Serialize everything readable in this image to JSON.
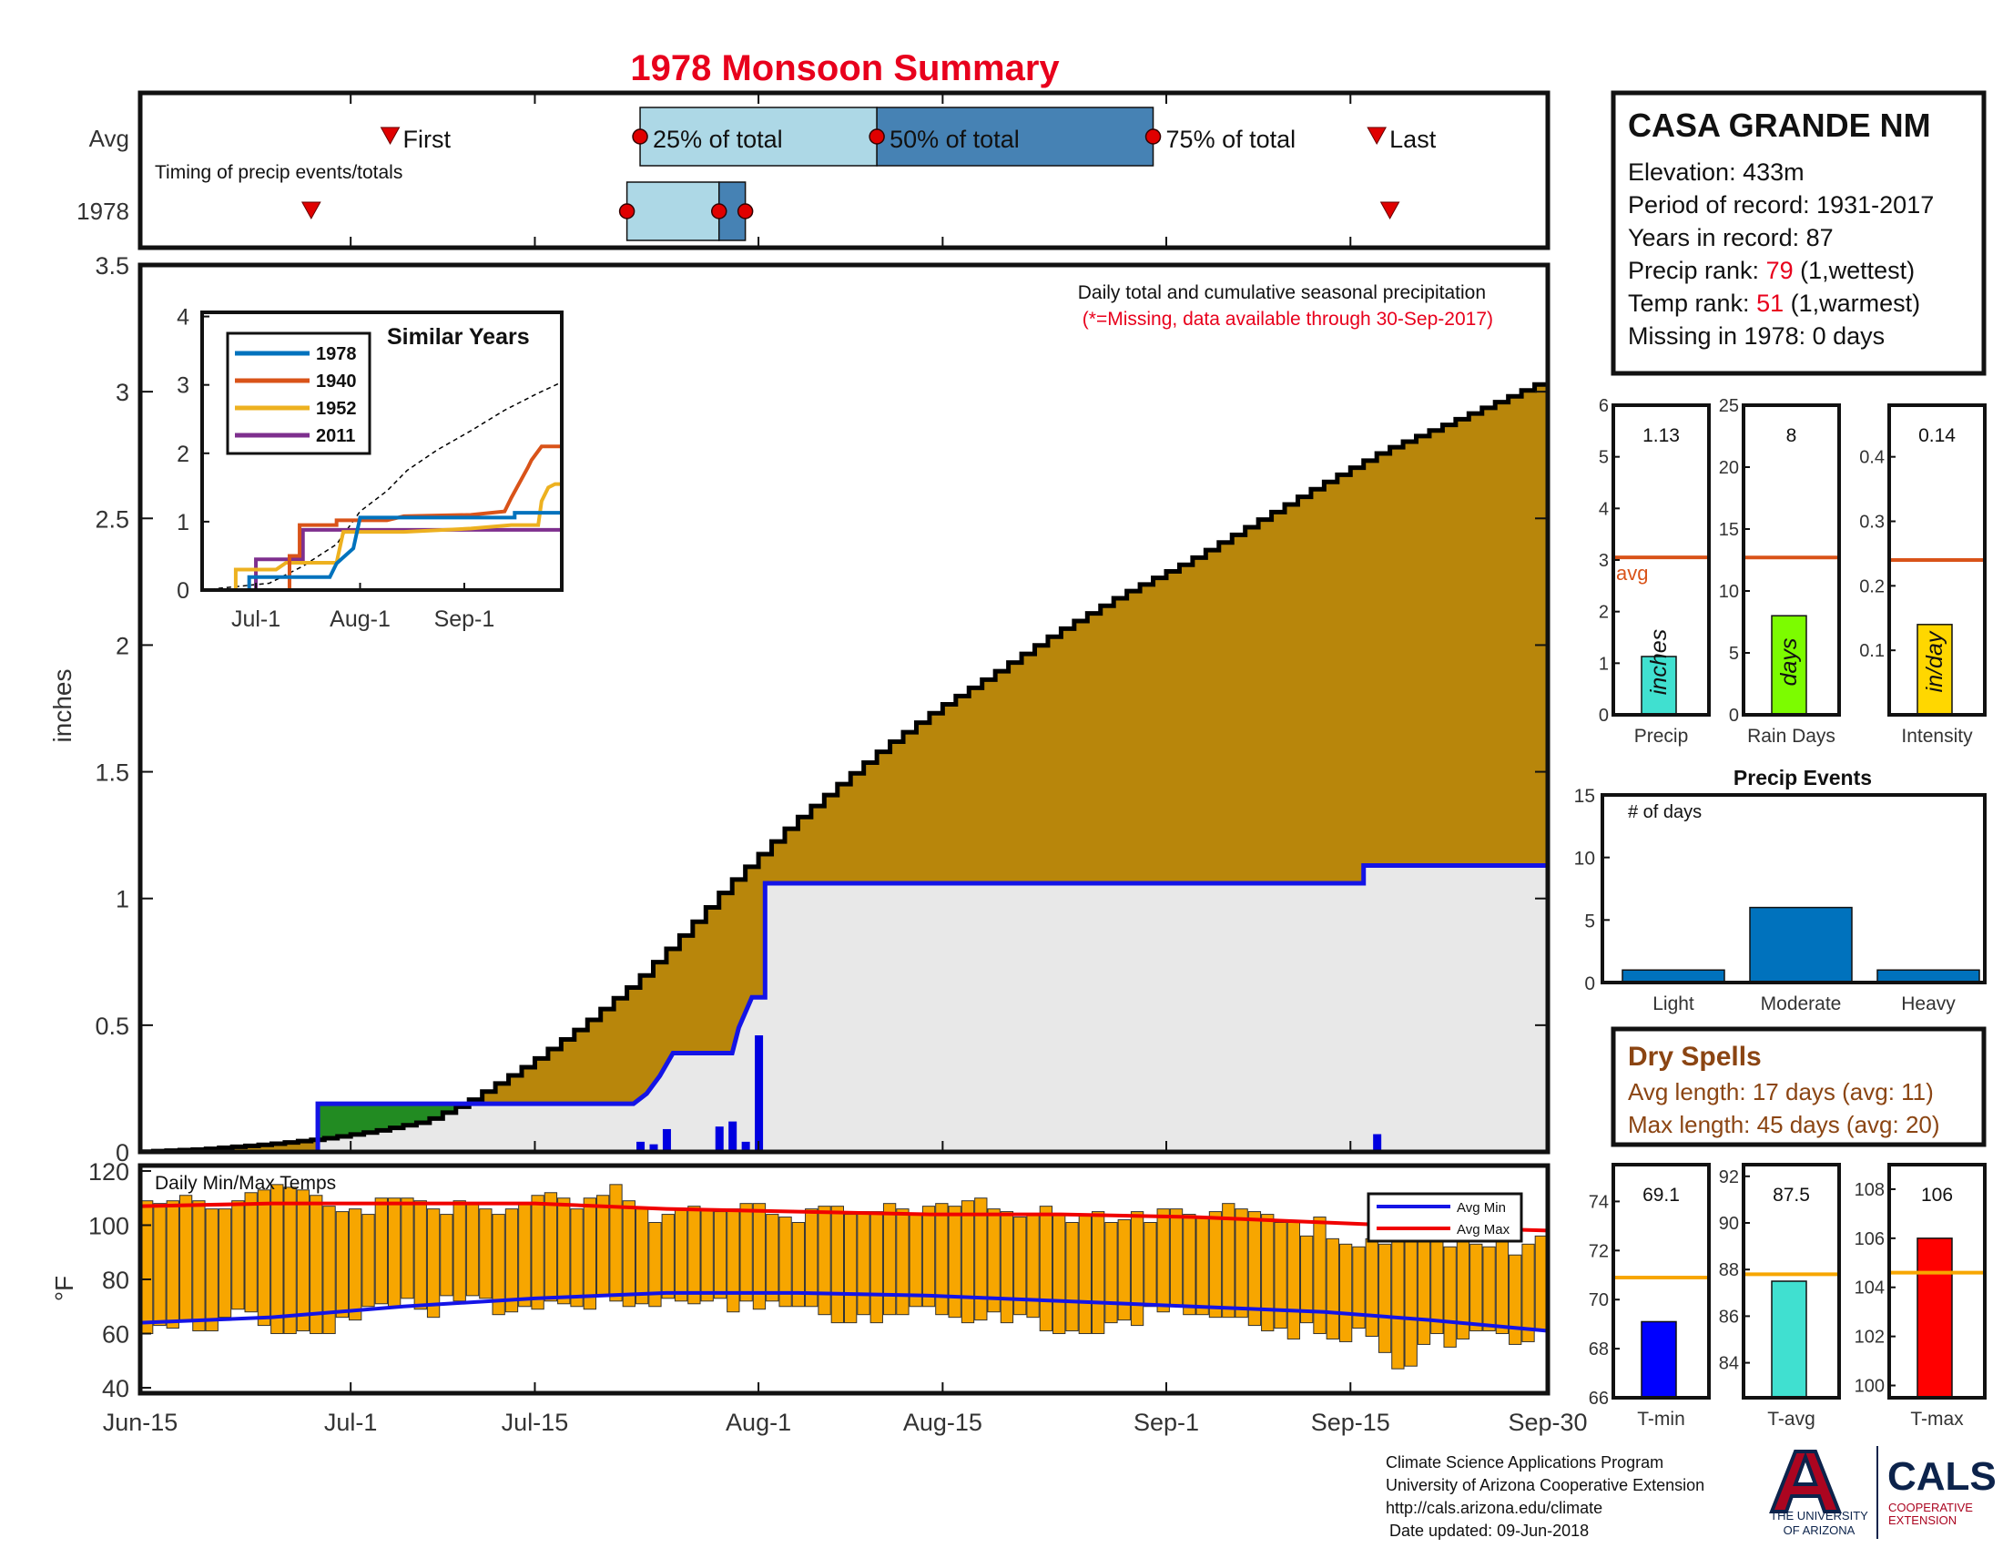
{
  "title": "1978 Monsoon Summary",
  "timing": {
    "row_avg": "Avg",
    "row_year": "1978",
    "caption": "Timing of precip events/totals",
    "first": "First",
    "p25": "25% of total",
    "p50": "50% of total",
    "p75": "75% of total",
    "last": "Last"
  },
  "station": {
    "name": "CASA GRANDE NM",
    "elevation": "Elevation: 433m",
    "period": "Period of record: 1931-2017",
    "years": "Years in record: 87",
    "precip_rank_label": "Precip rank: ",
    "precip_rank": "79",
    "precip_rank_note": " (1,wettest)",
    "temp_rank_label": "Temp rank: ",
    "temp_rank": "51",
    "temp_rank_note": " (1,warmest)",
    "missing": "Missing in 1978: 0 days"
  },
  "main_notes": {
    "line1": "Daily total and cumulative seasonal precipitation",
    "line2": "(*=Missing, data available through 30-Sep-2017)"
  },
  "dry_spells": {
    "title": "Dry Spells",
    "avg": "Avg length: 17 days (avg: 11)",
    "max": "Max length: 45 days (avg: 20)"
  },
  "footer": {
    "line1": "Climate Science Applications Program",
    "line2": "University of Arizona Cooperative Extension",
    "line3": "http://cals.arizona.edu/climate",
    "line4": "Date updated: 09-Jun-2018",
    "ua_line1": "THE UNIVERSITY",
    "ua_line2": "OF ARIZONA",
    "cals": "CALS",
    "cals_line1": "COOPERATIVE",
    "cals_line2": "EXTENSION"
  },
  "colors": {
    "title": "#e8001c",
    "avg_fill": "#b8860b",
    "obs_fill": "#e8e8e8",
    "obs_line": "#1414e6",
    "temp_bar": "#f7a600",
    "avg_line_mini": "#d95319",
    "dry_text": "#8b4513"
  },
  "chart_data": [
    {
      "type": "line",
      "title": "",
      "ylabel": "inches",
      "notes": [
        "Daily total and cumulative seasonal precipitation",
        "(*=Missing, data available through 30-Sep-2017)"
      ],
      "x_ticks": [
        "Jun-15",
        "Jul-1",
        "Jul-15",
        "Aug-1",
        "Aug-15",
        "Sep-1",
        "Sep-15",
        "Sep-30"
      ],
      "x_tick_days": [
        0,
        16,
        30,
        47,
        61,
        78,
        92,
        107
      ],
      "y_ticks": [
        "0",
        "0.5",
        "1",
        "1.5",
        "2",
        "2.5",
        "3",
        "3.5"
      ],
      "ylim": [
        0,
        3.5
      ],
      "xlim_days": [
        0,
        107
      ],
      "avg_cumulative": [
        [
          0,
          0
        ],
        [
          5,
          0.01
        ],
        [
          10,
          0.03
        ],
        [
          14,
          0.05
        ],
        [
          18,
          0.08
        ],
        [
          22,
          0.12
        ],
        [
          25,
          0.19
        ],
        [
          30,
          0.35
        ],
        [
          34,
          0.5
        ],
        [
          38,
          0.67
        ],
        [
          42,
          0.88
        ],
        [
          45,
          1.05
        ],
        [
          47,
          1.15
        ],
        [
          50,
          1.3
        ],
        [
          53,
          1.43
        ],
        [
          57,
          1.6
        ],
        [
          61,
          1.75
        ],
        [
          65,
          1.88
        ],
        [
          70,
          2.05
        ],
        [
          75,
          2.2
        ],
        [
          80,
          2.33
        ],
        [
          85,
          2.48
        ],
        [
          90,
          2.63
        ],
        [
          95,
          2.77
        ],
        [
          100,
          2.88
        ],
        [
          104,
          2.97
        ],
        [
          107,
          3.04
        ]
      ],
      "obs_cumulative_steps": [
        [
          0,
          0
        ],
        [
          13.5,
          0
        ],
        [
          13.5,
          0.19
        ],
        [
          24,
          0.19
        ],
        [
          37.5,
          0.19
        ],
        [
          38.5,
          0.23
        ],
        [
          39.5,
          0.3
        ],
        [
          40.5,
          0.39
        ],
        [
          45,
          0.39
        ],
        [
          45.5,
          0.49
        ],
        [
          46.5,
          0.61
        ],
        [
          47.5,
          0.61
        ],
        [
          47.5,
          1.06
        ],
        [
          93,
          1.06
        ],
        [
          93,
          1.13
        ],
        [
          107,
          1.13
        ]
      ],
      "daily_precip": [
        [
          38,
          0.04
        ],
        [
          39,
          0.03
        ],
        [
          40,
          0.09
        ],
        [
          44,
          0.1
        ],
        [
          45,
          0.12
        ],
        [
          46,
          0.04
        ],
        [
          47,
          0.46
        ],
        [
          94,
          0.07
        ]
      ]
    },
    {
      "type": "line",
      "title": "Similar Years",
      "x_ticks": [
        "Jul-1",
        "Aug-1",
        "Sep-1"
      ],
      "x_tick_days": [
        16,
        47,
        78
      ],
      "y_ticks": [
        "0",
        "1",
        "2",
        "3",
        "4"
      ],
      "ylim": [
        0,
        4
      ],
      "xlim_days": [
        0,
        107
      ],
      "series": [
        {
          "name": "1978",
          "color": "#0072bd",
          "points": [
            [
              0,
              0
            ],
            [
              14,
              0
            ],
            [
              14,
              0.19
            ],
            [
              38,
              0.19
            ],
            [
              40,
              0.39
            ],
            [
              45,
              0.61
            ],
            [
              47,
              1.06
            ],
            [
              93,
              1.06
            ],
            [
              93,
              1.13
            ],
            [
              107,
              1.13
            ]
          ]
        },
        {
          "name": "1940",
          "color": "#d95319",
          "points": [
            [
              0,
              0
            ],
            [
              26,
              0
            ],
            [
              26,
              0.5
            ],
            [
              29,
              0.5
            ],
            [
              29,
              0.95
            ],
            [
              40,
              0.95
            ],
            [
              40,
              1.02
            ],
            [
              55,
              1.02
            ],
            [
              60,
              1.08
            ],
            [
              80,
              1.1
            ],
            [
              90,
              1.15
            ],
            [
              92,
              1.35
            ],
            [
              97,
              1.8
            ],
            [
              98,
              1.9
            ],
            [
              101,
              2.1
            ],
            [
              107,
              2.1
            ]
          ]
        },
        {
          "name": "1952",
          "color": "#edb120",
          "points": [
            [
              0,
              0
            ],
            [
              10,
              0
            ],
            [
              10,
              0.3
            ],
            [
              22,
              0.3
            ],
            [
              25,
              0.4
            ],
            [
              40,
              0.4
            ],
            [
              42,
              0.85
            ],
            [
              60,
              0.85
            ],
            [
              80,
              0.9
            ],
            [
              92,
              0.95
            ],
            [
              100,
              0.95
            ],
            [
              101,
              1.3
            ],
            [
              103,
              1.5
            ],
            [
              105,
              1.55
            ],
            [
              107,
              1.55
            ]
          ]
        },
        {
          "name": "2011",
          "color": "#7e2f8e",
          "points": [
            [
              0,
              0
            ],
            [
              16,
              0
            ],
            [
              16,
              0.45
            ],
            [
              30,
              0.45
            ],
            [
              30,
              0.88
            ],
            [
              107,
              0.88
            ]
          ]
        },
        {
          "name": "Avg",
          "color": "#000000",
          "points": [
            [
              0,
              0
            ],
            [
              20,
              0.1
            ],
            [
              30,
              0.35
            ],
            [
              40,
              0.67
            ],
            [
              47,
              1.15
            ],
            [
              55,
              1.45
            ],
            [
              61,
              1.75
            ],
            [
              70,
              2.05
            ],
            [
              80,
              2.33
            ],
            [
              90,
              2.63
            ],
            [
              100,
              2.88
            ],
            [
              107,
              3.04
            ]
          ]
        }
      ]
    },
    {
      "type": "line",
      "title": "Timing of precip events/totals",
      "categories": [
        "Avg",
        "1978"
      ],
      "avg_markers_days": {
        "First": 19,
        "25%": 38,
        "50%": 56,
        "75%": 77,
        "Last": 94
      },
      "year_markers_days": {
        "First": 13,
        "25%": 37,
        "50%": 44,
        "75%": 46,
        "Last": 95
      }
    },
    {
      "type": "bar",
      "title": "",
      "categories": [
        "Precip",
        "Rain Days",
        "Intensity"
      ],
      "labels": [
        "inches",
        "days",
        "in/day"
      ],
      "values": [
        1.13,
        8,
        0.14
      ],
      "value_labels": [
        "1.13",
        "8",
        "0.14"
      ],
      "averages": [
        3.05,
        12.7,
        0.24
      ],
      "avg_label": "avg",
      "ylims": [
        [
          0,
          6
        ],
        [
          0,
          25
        ],
        [
          0,
          0.48
        ]
      ],
      "y_ticks": [
        [
          "0",
          "1",
          "2",
          "3",
          "4",
          "5",
          "6"
        ],
        [
          "0",
          "5",
          "10",
          "15",
          "20",
          "25"
        ],
        [
          "0.1",
          "0.2",
          "0.3",
          "0.4"
        ]
      ],
      "colors": [
        "#40e0d0",
        "#7cfc00",
        "#ffd700"
      ]
    },
    {
      "type": "bar",
      "title": "Precip Events",
      "annotation": "# of days",
      "categories": [
        "Light",
        "Moderate",
        "Heavy"
      ],
      "values": [
        1,
        6,
        1
      ],
      "ylim": [
        0,
        15
      ],
      "y_ticks": [
        "0",
        "5",
        "10",
        "15"
      ]
    },
    {
      "type": "bar",
      "title": "Daily Min/Max Temps",
      "ylabel": "°F",
      "ylim": [
        38,
        122
      ],
      "y_ticks": [
        "40",
        "60",
        "80",
        "100",
        "120"
      ],
      "legend": [
        "Avg Min",
        "Avg Max"
      ],
      "avg_min": [
        [
          0,
          64
        ],
        [
          10,
          66
        ],
        [
          20,
          70
        ],
        [
          30,
          73
        ],
        [
          40,
          75
        ],
        [
          50,
          75
        ],
        [
          60,
          74
        ],
        [
          70,
          72
        ],
        [
          80,
          70
        ],
        [
          90,
          68
        ],
        [
          98,
          65
        ],
        [
          107,
          61
        ]
      ],
      "avg_max": [
        [
          0,
          107
        ],
        [
          10,
          108
        ],
        [
          20,
          108
        ],
        [
          30,
          108
        ],
        [
          40,
          106
        ],
        [
          50,
          105
        ],
        [
          60,
          104
        ],
        [
          70,
          104
        ],
        [
          80,
          103
        ],
        [
          90,
          101
        ],
        [
          100,
          99
        ],
        [
          107,
          98
        ]
      ],
      "tmax": [
        109,
        108,
        109,
        111,
        109,
        106,
        106,
        109,
        112,
        113,
        115,
        114,
        113,
        111,
        107,
        105,
        106,
        104,
        110,
        110,
        110,
        109,
        106,
        104,
        109,
        108,
        106,
        104,
        106,
        108,
        111,
        112,
        110,
        106,
        110,
        111,
        115,
        109,
        106,
        101,
        104,
        106,
        107,
        106,
        105,
        106,
        108,
        108,
        104,
        103,
        101,
        106,
        107,
        107,
        104,
        105,
        105,
        108,
        106,
        104,
        107,
        108,
        107,
        109,
        110,
        106,
        105,
        103,
        104,
        107,
        104,
        101,
        104,
        105,
        101,
        102,
        105,
        101,
        106,
        106,
        104,
        103,
        105,
        108,
        106,
        105,
        104,
        101,
        101,
        96,
        103,
        95,
        93,
        92,
        95,
        93,
        94,
        98,
        100,
        98,
        92,
        97,
        93,
        92,
        94,
        89,
        93,
        96
      ],
      "tmin": [
        60,
        63,
        62,
        65,
        61,
        61,
        66,
        69,
        68,
        63,
        60,
        60,
        61,
        60,
        60,
        66,
        65,
        70,
        71,
        70,
        73,
        69,
        66,
        74,
        72,
        74,
        73,
        67,
        68,
        70,
        69,
        72,
        71,
        70,
        69,
        74,
        72,
        70,
        71,
        70,
        73,
        72,
        71,
        72,
        73,
        68,
        72,
        69,
        72,
        70,
        70,
        70,
        67,
        64,
        64,
        67,
        64,
        67,
        67,
        70,
        70,
        67,
        66,
        64,
        65,
        68,
        64,
        67,
        66,
        61,
        60,
        61,
        60,
        60,
        64,
        65,
        63,
        70,
        68,
        70,
        67,
        67,
        66,
        66,
        66,
        63,
        61,
        62,
        58,
        64,
        60,
        58,
        57,
        62,
        59,
        53,
        47,
        48,
        56,
        60,
        55,
        58,
        61,
        61,
        60,
        56,
        57,
        61
      ],
      "x_ticks": [
        "Jun-15",
        "Jul-1",
        "Jul-15",
        "Aug-1",
        "Aug-15",
        "Sep-1",
        "Sep-15",
        "Sep-30"
      ]
    },
    {
      "type": "bar",
      "title": "",
      "categories": [
        "T-min",
        "T-avg",
        "T-max"
      ],
      "values": [
        69.1,
        87.5,
        106
      ],
      "value_labels": [
        "69.1",
        "87.5",
        "106"
      ],
      "averages": [
        70.9,
        87.8,
        104.6
      ],
      "ylims": [
        [
          66,
          75.5
        ],
        [
          82.5,
          92.5
        ],
        [
          99.5,
          109
        ]
      ],
      "y_ticks": [
        [
          "66",
          "68",
          "70",
          "72",
          "74"
        ],
        [
          "84",
          "86",
          "88",
          "90",
          "92"
        ],
        [
          "100",
          "102",
          "104",
          "106",
          "108"
        ]
      ],
      "colors": [
        "#0000ff",
        "#40e0d0",
        "#ff0000"
      ]
    }
  ]
}
